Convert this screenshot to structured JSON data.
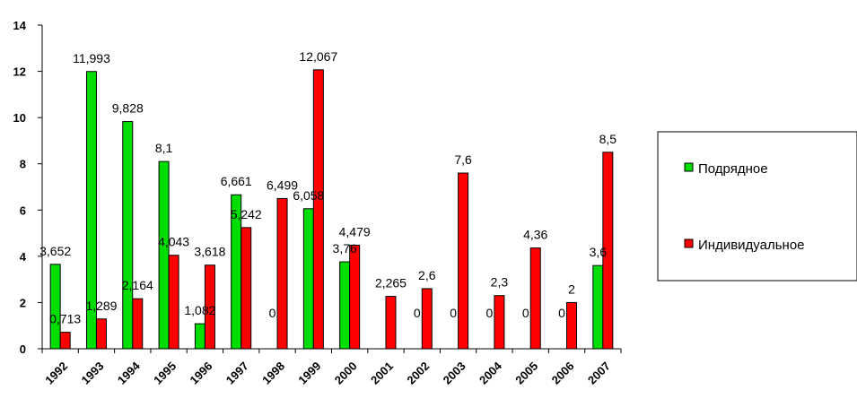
{
  "chart_data": {
    "type": "bar",
    "categories": [
      "1992",
      "1993",
      "1994",
      "1995",
      "1996",
      "1997",
      "1998",
      "1999",
      "2000",
      "2001",
      "2002",
      "2003",
      "2004",
      "2005",
      "2006",
      "2007"
    ],
    "ylim": [
      0,
      14
    ],
    "yticks": [
      "0",
      "2",
      "4",
      "6",
      "8",
      "10",
      "12",
      "14"
    ],
    "grid": false,
    "legend_position": "right",
    "series": [
      {
        "name": "Подрядное",
        "color": "#00dd00",
        "values": [
          3.652,
          11.993,
          9.828,
          8.1,
          1.082,
          6.661,
          0,
          6.058,
          3.76,
          0,
          0,
          0,
          0,
          0,
          0,
          3.6
        ],
        "labels": [
          "3,652",
          "11,993",
          "9,828",
          "8,1",
          "1,082",
          "6,661",
          "0",
          "6,058",
          "3,76",
          "",
          "0",
          "0",
          "0",
          "0",
          "0",
          "3,6"
        ]
      },
      {
        "name": "Индивидуальное",
        "color": "#ff0000",
        "values": [
          0.713,
          1.289,
          2.164,
          4.043,
          3.618,
          5.242,
          6.499,
          12.067,
          4.479,
          2.265,
          2.6,
          7.6,
          2.3,
          4.36,
          2,
          8.5
        ],
        "labels": [
          "0,713",
          "1,289",
          "2,164",
          "4,043",
          "3,618",
          "5,242",
          "6,499",
          "12,067",
          "4,479",
          "2,265",
          "2,6",
          "7,6",
          "2,3",
          "4,36",
          "2",
          "8,5"
        ]
      }
    ]
  }
}
